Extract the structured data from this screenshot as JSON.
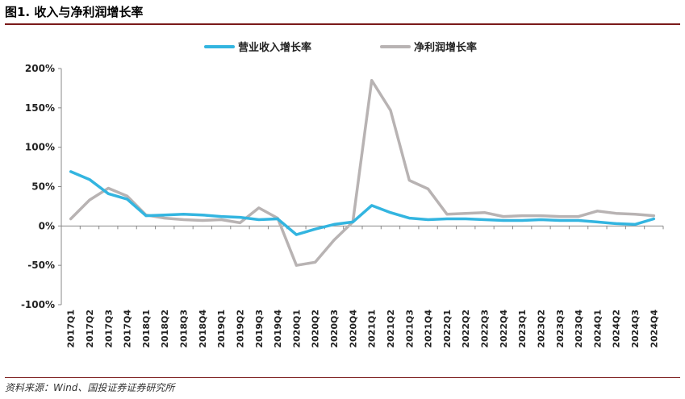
{
  "header": {
    "title": "图1. 收入与净利润增长率"
  },
  "source": "资料来源：Wind、国投证券证券研究所",
  "colors": {
    "revenue": "#33b5e0",
    "profit": "#b8b3b3",
    "rule": "#7a1a1a"
  },
  "chart_data": {
    "type": "line",
    "title": "",
    "xlabel": "",
    "ylabel": "",
    "ylim": [
      -100,
      200
    ],
    "y_ticks": [
      "-100%",
      "-50%",
      "0%",
      "50%",
      "100%",
      "150%",
      "200%"
    ],
    "y_tick_values": [
      -100,
      -50,
      0,
      50,
      100,
      150,
      200
    ],
    "grid": false,
    "legend_position": "top-center",
    "categories": [
      "2017Q1",
      "2017Q2",
      "2017Q3",
      "2017Q4",
      "2018Q1",
      "2018Q2",
      "2018Q3",
      "2018Q4",
      "2019Q1",
      "2019Q2",
      "2019Q3",
      "2019Q4",
      "2020Q1",
      "2020Q2",
      "2020Q3",
      "2020Q4",
      "2021Q1",
      "2021Q2",
      "2021Q3",
      "2021Q4",
      "2022Q1",
      "2022Q2",
      "2022Q3",
      "2022Q4",
      "2023Q1",
      "2023Q2",
      "2023Q3",
      "2023Q4",
      "2024Q1",
      "2024Q2",
      "2024Q3",
      "2024Q4"
    ],
    "series": [
      {
        "name": "营业收入增长率",
        "color": "#33b5e0",
        "values": [
          69,
          59,
          41,
          34,
          13,
          14,
          15,
          14,
          12,
          11,
          8,
          9,
          -11,
          -4,
          2,
          5,
          26,
          17,
          10,
          8,
          9,
          9,
          8,
          7,
          7,
          8,
          7,
          7,
          5,
          3,
          2,
          9
        ]
      },
      {
        "name": "净利润增长率",
        "color": "#b8b3b3",
        "values": [
          9,
          33,
          48,
          38,
          14,
          10,
          8,
          7,
          8,
          4,
          23,
          10,
          -50,
          -46,
          -18,
          5,
          185,
          147,
          58,
          47,
          15,
          16,
          17,
          12,
          13,
          13,
          12,
          12,
          19,
          16,
          15,
          13
        ]
      }
    ]
  }
}
